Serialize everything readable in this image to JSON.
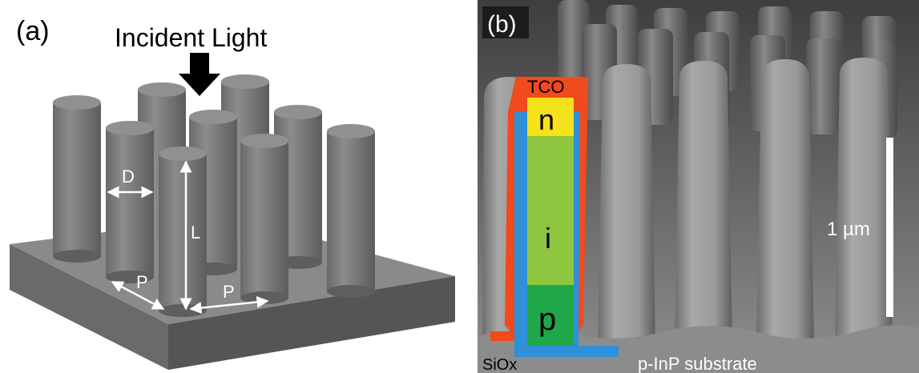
{
  "panel_a": {
    "label": "(a)",
    "title": "Incident Light",
    "dim_diameter": "D",
    "dim_length": "L",
    "dim_pitch_left": "P",
    "dim_pitch_right": "P"
  },
  "panel_b": {
    "label": "(b)",
    "layer_tco": "TCO",
    "layer_n": "n",
    "layer_i": "i",
    "layer_p": "p",
    "layer_siox": "SiOx",
    "substrate": "p-InP substrate",
    "scale_bar": "1 µm"
  },
  "colors": {
    "tco": "#f04a1d",
    "siox": "#2f8fd8",
    "n_layer": "#f5e21a",
    "i_layer": "#8ec63f",
    "p_layer": "#1fa84a",
    "pillar": "#7c7c7c",
    "substrate_block": "#6e6e6e"
  }
}
